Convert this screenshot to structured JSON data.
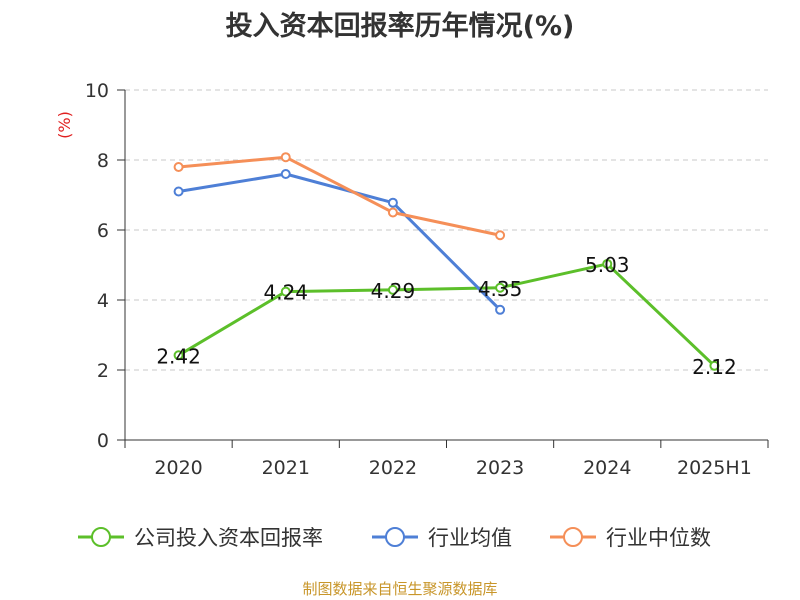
{
  "title": "投入资本回报率历年情况(%)",
  "source": "制图数据来自恒生聚源数据库",
  "chart_data": {
    "type": "line",
    "title": "投入资本回报率历年情况(%)",
    "ylabel": "(%)",
    "ylim": [
      0,
      10
    ],
    "yticks": [
      0,
      2,
      4,
      6,
      8,
      10
    ],
    "categories": [
      "2020",
      "2021",
      "2022",
      "2023",
      "2024",
      "2025H1"
    ],
    "grid": true,
    "legend_position": "bottom",
    "series": [
      {
        "name": "公司投入资本回报率",
        "color": "#5cbf2a",
        "values": [
          2.42,
          4.24,
          4.29,
          4.35,
          5.03,
          2.12
        ],
        "labels": [
          "2.42",
          "4.24",
          "4.29",
          "4.35",
          "5.03",
          "2.12"
        ],
        "show_labels": true
      },
      {
        "name": "行业均值",
        "color": "#4e7fd6",
        "values": [
          7.1,
          7.6,
          6.78,
          3.72,
          null,
          null
        ],
        "show_labels": false
      },
      {
        "name": "行业中位数",
        "color": "#f58f58",
        "values": [
          7.8,
          8.08,
          6.5,
          5.85,
          null,
          null
        ],
        "show_labels": false
      }
    ]
  }
}
